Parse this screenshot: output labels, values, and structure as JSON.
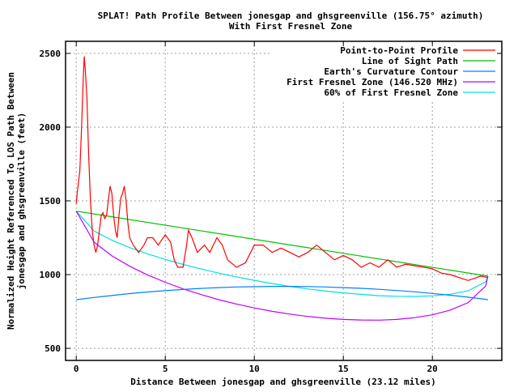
{
  "chart_data": {
    "type": "line",
    "title": "SPLAT! Path Profile Between jonesgap and ghsgreenville (156.75° azimuth)",
    "subtitle": "With First Fresnel Zone",
    "xlabel": "Distance Between jonesgap and ghsgreenville (23.12 miles)",
    "ylabel": [
      "Normalized Height Referenced To LOS Path Between",
      "jonesgap and ghsgreenville (feet)"
    ],
    "xlim": [
      -0.6,
      23.9
    ],
    "ylim": [
      418,
      2582
    ],
    "xticks": [
      0,
      5,
      10,
      15,
      20
    ],
    "yticks": [
      500,
      1000,
      1500,
      2000,
      2500
    ],
    "grid": true,
    "legend_position": "top-right",
    "series": [
      {
        "name": "Point-to-Point Profile",
        "color": "#ff0000",
        "x": [
          0,
          0.05,
          0.1,
          0.2,
          0.3,
          0.4,
          0.45,
          0.5,
          0.6,
          0.7,
          0.8,
          0.9,
          1.0,
          1.1,
          1.2,
          1.3,
          1.4,
          1.5,
          1.6,
          1.7,
          1.8,
          1.9,
          2.0,
          2.1,
          2.2,
          2.3,
          2.4,
          2.5,
          2.6,
          2.7,
          2.8,
          2.9,
          3.0,
          3.2,
          3.5,
          3.8,
          4.0,
          4.3,
          4.6,
          5.0,
          5.3,
          5.5,
          5.7,
          6.0,
          6.2,
          6.3,
          6.5,
          6.8,
          7.2,
          7.5,
          7.9,
          8.2,
          8.5,
          9.0,
          9.5,
          10.0,
          10.5,
          11.0,
          11.5,
          12.0,
          12.5,
          13.0,
          13.5,
          14.0,
          14.5,
          15.0,
          15.5,
          16.0,
          16.5,
          17.0,
          17.5,
          18.0,
          18.5,
          19.0,
          19.5,
          20.0,
          20.5,
          21.0,
          21.5,
          22.0,
          22.5,
          22.7,
          23.12
        ],
        "y": [
          1480,
          1550,
          1600,
          1700,
          2000,
          2350,
          2480,
          2400,
          2200,
          1800,
          1500,
          1300,
          1200,
          1150,
          1200,
          1300,
          1400,
          1420,
          1380,
          1400,
          1500,
          1600,
          1550,
          1400,
          1300,
          1250,
          1400,
          1520,
          1550,
          1600,
          1500,
          1350,
          1250,
          1200,
          1150,
          1200,
          1250,
          1250,
          1200,
          1270,
          1220,
          1100,
          1050,
          1050,
          1200,
          1300,
          1250,
          1150,
          1200,
          1150,
          1250,
          1200,
          1100,
          1050,
          1080,
          1200,
          1200,
          1150,
          1180,
          1150,
          1120,
          1150,
          1200,
          1150,
          1100,
          1130,
          1100,
          1050,
          1080,
          1050,
          1100,
          1050,
          1070,
          1060,
          1050,
          1040,
          1010,
          1000,
          980,
          960,
          980,
          990,
          980
        ]
      },
      {
        "name": "Line of Sight Path",
        "color": "#00c000",
        "x": [
          0,
          23.12
        ],
        "y": [
          1430,
          990
        ]
      },
      {
        "name": "Earth's Curvature Contour",
        "color": "#0080ff",
        "x": [
          0,
          1,
          2,
          3,
          4,
          5,
          6,
          7,
          8,
          9,
          10,
          11,
          12,
          13,
          14,
          15,
          16,
          17,
          18,
          19,
          20,
          21,
          22,
          23,
          23.12
        ],
        "y": [
          830,
          845,
          858,
          871,
          882,
          891,
          899,
          906,
          912,
          916,
          918,
          920,
          920,
          919,
          916,
          912,
          907,
          900,
          892,
          883,
          872,
          860,
          847,
          832,
          830
        ]
      },
      {
        "name": "First Fresnel Zone (146.520 MHz)",
        "color": "#c000ff",
        "x": [
          0,
          1,
          2,
          3,
          4,
          5,
          6,
          7,
          8,
          9,
          10,
          11,
          12,
          13,
          14,
          15,
          16,
          17,
          18,
          19,
          20,
          21,
          22,
          23,
          23.12
        ],
        "y": [
          1430,
          1220,
          1127,
          1057,
          998,
          948,
          903,
          865,
          830,
          800,
          774,
          751,
          732,
          716,
          704,
          696,
          692,
          691,
          696,
          708,
          727,
          759,
          809,
          924,
          990
        ]
      },
      {
        "name": "60% of First Fresnel Zone",
        "color": "#00e0e0",
        "x": [
          0,
          1,
          2,
          3,
          4,
          5,
          6,
          7,
          8,
          9,
          10,
          11,
          12,
          13,
          14,
          15,
          16,
          17,
          18,
          19,
          20,
          21,
          22,
          23,
          23.12
        ],
        "y": [
          1430,
          1296,
          1233,
          1183,
          1141,
          1103,
          1069,
          1038,
          1010,
          984,
          961,
          939,
          920,
          903,
          888,
          876,
          866,
          857,
          853,
          852,
          856,
          867,
          890,
          952,
          990
        ]
      }
    ]
  }
}
